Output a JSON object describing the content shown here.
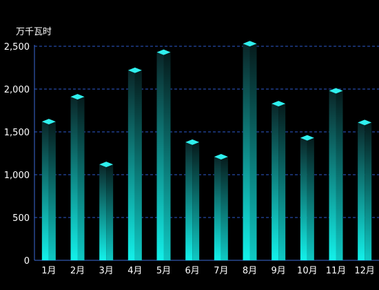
{
  "chart_data": {
    "type": "bar",
    "unit_label": "万千瓦时",
    "categories": [
      "1月",
      "2月",
      "3月",
      "4月",
      "5月",
      "6月",
      "7月",
      "8月",
      "9月",
      "10月",
      "11月",
      "12月"
    ],
    "series": [
      {
        "values": [
          1620,
          1910,
          1120,
          2220,
          2430,
          1380,
          1210,
          2530,
          1830,
          1430,
          1980,
          1610
        ]
      }
    ],
    "ylim": [
      0,
      2500
    ],
    "yticks": [
      0,
      500,
      1000,
      1500,
      2000,
      2500
    ],
    "ytick_labels": [
      "0",
      "500",
      "1,000",
      "1,500",
      "2,000",
      "2,500"
    ],
    "grid": true,
    "colors": {
      "background": "#000000",
      "bar_top": "#0d2a2c",
      "bar_bottom": "#15f4ee",
      "bar_cap": "#2ff0ee",
      "grid": "#2e5bd1",
      "axis": "#3c6dd8",
      "text": "#ffffff"
    }
  }
}
